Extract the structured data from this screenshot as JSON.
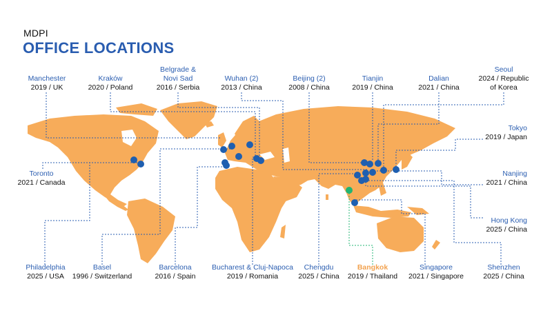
{
  "header": {
    "brand": "MDPI",
    "title": "OFFICE LOCATIONS"
  },
  "colors": {
    "land": "#f7ac5a",
    "marker": "#1f5fb0",
    "marker_highlight": "#22b573",
    "leader_line": "#2a5db0",
    "leader_line_highlight": "#22b573",
    "city_text": "#2a5db0",
    "city_text_highlight": "#f2a24f"
  },
  "offices": {
    "manchester": {
      "city": "Manchester",
      "detail": "2019 / UK"
    },
    "krakow": {
      "city": "Kraków",
      "detail": "2020 / Poland"
    },
    "belgrade": {
      "city": "Belgrade & Novi Sad",
      "city_line1": "Belgrade &",
      "city_line2": "Novi Sad",
      "detail": "2016 / Serbia"
    },
    "wuhan": {
      "city": "Wuhan (2)",
      "detail": "2013 / China"
    },
    "beijing": {
      "city": "Beijing (2)",
      "detail": "2008 / China"
    },
    "tianjin": {
      "city": "Tianjin",
      "detail": "2019 / China"
    },
    "dalian": {
      "city": "Dalian",
      "detail": "2021 / China"
    },
    "seoul": {
      "city": "Seoul",
      "detail_line1": "2024 / Republic",
      "detail_line2": "of Korea"
    },
    "tokyo": {
      "city": "Tokyo",
      "detail": "2019 / Japan"
    },
    "nanjing": {
      "city": "Nanjing",
      "detail": "2021 / China"
    },
    "hongkong": {
      "city": "Hong Kong",
      "detail": "2025 / China"
    },
    "toronto": {
      "city": "Toronto",
      "detail": "2021 / Canada"
    },
    "philadelphia": {
      "city": "Philadelphia",
      "detail": "2025 / USA"
    },
    "basel": {
      "city": "Basel",
      "detail": "1996 / Switzerland"
    },
    "barcelona": {
      "city": "Barcelona",
      "detail": "2016 / Spain"
    },
    "bucharest": {
      "city": "Bucharest & Cluj-Napoca",
      "detail": "2019 / Romania"
    },
    "chengdu": {
      "city": "Chengdu",
      "detail": "2025 / China"
    },
    "bangkok": {
      "city": "Bangkok",
      "detail": "2019 / Thailand",
      "highlighted": true
    },
    "singapore": {
      "city": "Singapore",
      "detail": "2021 / Singapore"
    },
    "shenzhen": {
      "city": "Shenzhen",
      "detail": "2025 / China"
    }
  }
}
